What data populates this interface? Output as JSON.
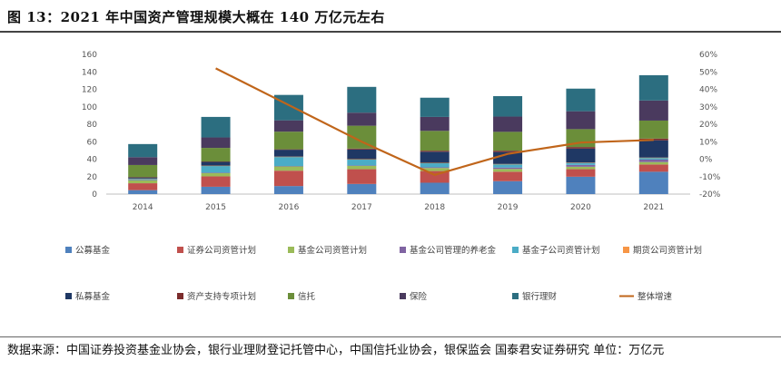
{
  "title": "图 13：2021 年中国资产管理规模大概在 140 万亿元左右",
  "source": "数据来源：中国证券投资基金业协会，银行业理财登记托管中心，中国信托业协会，银保监会 国泰君安证券研究 单位：万亿元",
  "chart_data": {
    "type": "bar",
    "stacked": true,
    "categories": [
      "2014",
      "2015",
      "2016",
      "2017",
      "2018",
      "2019",
      "2020",
      "2021"
    ],
    "y_left_ticks": [
      "0",
      "20",
      "40",
      "60",
      "80",
      "100",
      "120",
      "140",
      "160"
    ],
    "y_right_ticks": [
      "-20%",
      "-10%",
      "0%",
      "10%",
      "20%",
      "30%",
      "40%",
      "50%",
      "60%"
    ],
    "ylim_left": [
      0,
      160
    ],
    "ylim_right": [
      -20,
      60
    ],
    "grid": false,
    "legend_position": "bottom",
    "series": [
      {
        "name": "公募基金",
        "color": "#4f81bd",
        "values": [
          4.5,
          8.4,
          9.2,
          11.6,
          13.0,
          14.8,
          19.9,
          25.6
        ]
      },
      {
        "name": "证券公司资管计划",
        "color": "#c0504d",
        "values": [
          7.9,
          11.9,
          17.6,
          16.9,
          13.4,
          10.8,
          8.6,
          8.3
        ]
      },
      {
        "name": "基金公司资管计划",
        "color": "#9bbb59",
        "values": [
          3.7,
          4.0,
          5.0,
          3.9,
          3.5,
          3.2,
          2.8,
          2.8
        ]
      },
      {
        "name": "基金公司管理的养老金",
        "color": "#8064a2",
        "values": [
          0.1,
          0.2,
          0.3,
          0.4,
          0.8,
          1.6,
          2.1,
          2.8
        ]
      },
      {
        "name": "基金子公司资管计划",
        "color": "#4bacc6",
        "values": [
          1.5,
          8.0,
          10.5,
          7.0,
          5.0,
          4.0,
          2.5,
          2.0
        ]
      },
      {
        "name": "期货公司资管计划",
        "color": "#f79646",
        "values": [
          0.1,
          0.1,
          0.3,
          0.2,
          0.1,
          0.1,
          0.2,
          0.3
        ]
      },
      {
        "name": "私募基金",
        "color": "#1f3864",
        "values": [
          1.5,
          4.5,
          7.9,
          11.1,
          12.7,
          13.7,
          16.0,
          19.8
        ]
      },
      {
        "name": "资产支持专项计划",
        "color": "#7b2c2c",
        "values": [
          0.1,
          0.2,
          0.5,
          1.0,
          1.2,
          1.5,
          1.8,
          2.0
        ]
      },
      {
        "name": "信托",
        "color": "#6b8e3a",
        "values": [
          13.9,
          15.6,
          20.2,
          26.2,
          22.7,
          21.6,
          20.5,
          20.6
        ]
      },
      {
        "name": "保险",
        "color": "#4a3a5e",
        "values": [
          9.0,
          12.0,
          13.0,
          15.0,
          16.0,
          17.5,
          20.5,
          23.0
        ]
      },
      {
        "name": "银行理财",
        "color": "#2c6e80",
        "values": [
          15.0,
          23.5,
          29.1,
          29.5,
          22.0,
          23.4,
          25.9,
          29.0
        ]
      }
    ],
    "line_series": {
      "name": "整体增速",
      "color": "#c0651a",
      "axis": "right",
      "values": [
        null,
        52,
        31,
        10,
        -9,
        3,
        9.5,
        11
      ]
    }
  }
}
